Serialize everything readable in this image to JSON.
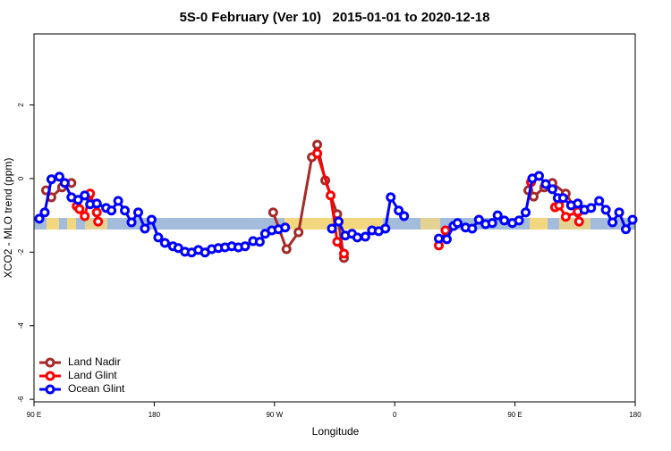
{
  "chart_data": {
    "type": "line",
    "title": "5S-0 February (Ver 10)   2015-01-01 to 2020-12-18",
    "x_label": "Longitude",
    "y_label": "XCO2 - MLO trend (ppm)",
    "xlim": [
      90,
      540
    ],
    "xticks": [
      {
        "value": 90,
        "label": "90 E"
      },
      180,
      {
        "value": 270,
        "label": "90 W"
      },
      {
        "value": 360,
        "label": "0"
      },
      {
        "value": 450,
        "label": "90 E"
      },
      {
        "value": 540,
        "label": "180"
      }
    ],
    "ylim": [
      -6.07,
      3.93
    ],
    "yticks": [
      -6,
      -4,
      -2,
      0,
      2
    ],
    "legend": "bottom-left",
    "series": [
      {
        "name": "Land Nadir",
        "color": "#a52a2a",
        "x": [
          99,
          103,
          111,
          118,
          269,
          279,
          288,
          298,
          302,
          308,
          317,
          322,
          460,
          464,
          472,
          478,
          488,
          497
        ],
        "values": [
          -0.32,
          -0.51,
          -0.24,
          -0.12,
          -0.92,
          -1.92,
          -1.46,
          0.58,
          0.92,
          -0.05,
          -0.97,
          -2.16,
          -0.32,
          -0.49,
          -0.24,
          -0.12,
          -0.41,
          -0.92
        ]
      },
      {
        "name": "Land Glint",
        "color": "#ff0000",
        "x": [
          122,
          124,
          128,
          132,
          137,
          138,
          302,
          312,
          317,
          322,
          393,
          398,
          462,
          480,
          483,
          488,
          497,
          498
        ],
        "values": [
          -0.75,
          -0.83,
          -1.02,
          -0.41,
          -0.92,
          -1.17,
          0.68,
          -0.46,
          -1.72,
          -2.04,
          -1.82,
          -1.41,
          -0.1,
          -0.78,
          -0.73,
          -1.04,
          -0.9,
          -1.17
        ]
      },
      {
        "name": "Ocean Glint",
        "color": "#0000ff",
        "x": [
          94,
          98,
          103,
          109,
          113,
          118,
          123,
          128,
          132,
          137,
          144,
          148,
          153,
          158,
          163,
          168,
          173,
          178,
          183,
          188,
          194,
          198,
          203,
          208,
          213,
          218,
          223,
          228,
          233,
          238,
          243,
          248,
          254,
          259,
          263,
          268,
          273,
          278,
          313,
          318,
          323,
          328,
          332,
          338,
          343,
          348,
          353,
          357,
          363,
          367,
          393,
          399,
          404,
          407,
          413,
          418,
          423,
          428,
          433,
          437,
          442,
          448,
          453,
          458,
          463,
          468,
          473,
          478,
          482,
          486,
          492,
          497,
          502,
          507,
          513,
          518,
          523,
          528,
          533,
          538
        ],
        "values": [
          -1.09,
          -0.92,
          -0.02,
          0.05,
          -0.12,
          -0.51,
          -0.58,
          -0.46,
          -0.7,
          -0.68,
          -0.8,
          -0.87,
          -0.61,
          -0.87,
          -1.19,
          -0.92,
          -1.36,
          -1.12,
          -1.6,
          -1.75,
          -1.84,
          -1.89,
          -1.99,
          -2.01,
          -1.94,
          -2.01,
          -1.92,
          -1.89,
          -1.87,
          -1.84,
          -1.87,
          -1.84,
          -1.7,
          -1.72,
          -1.5,
          -1.41,
          -1.38,
          -1.33,
          -1.36,
          -1.17,
          -1.55,
          -1.5,
          -1.6,
          -1.58,
          -1.41,
          -1.43,
          -1.36,
          -0.51,
          -0.87,
          -1.02,
          -1.63,
          -1.65,
          -1.29,
          -1.21,
          -1.33,
          -1.36,
          -1.12,
          -1.24,
          -1.21,
          -1.0,
          -1.14,
          -1.21,
          -1.14,
          -0.92,
          0.0,
          0.07,
          -0.15,
          -0.29,
          -0.53,
          -0.53,
          -0.73,
          -0.68,
          -0.85,
          -0.8,
          -0.61,
          -0.85,
          -1.19,
          -0.92,
          -1.38,
          -1.12
        ]
      }
    ]
  }
}
